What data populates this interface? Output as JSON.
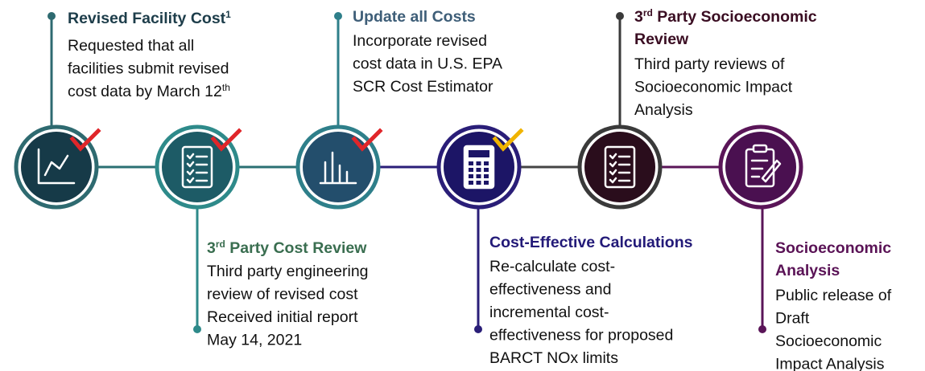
{
  "steps": [
    {
      "title": [
        [
          {
            "text": "Revised Facility Cost"
          },
          {
            "sup": "1"
          }
        ]
      ],
      "lines": [
        [
          {
            "text": "Requested that all"
          }
        ],
        [
          {
            "text": "facilities submit revised"
          }
        ],
        [
          {
            "text": "cost data by March 12"
          },
          {
            "sup": "th"
          }
        ]
      ]
    },
    {
      "title": [
        [
          {
            "text": "3"
          },
          {
            "sup": "rd"
          },
          {
            "text": " Party Cost Review"
          }
        ]
      ],
      "lines": [
        [
          {
            "text": "Third party engineering"
          }
        ],
        [
          {
            "text": "review of revised cost"
          }
        ],
        [
          {
            "text": "Received initial report"
          }
        ],
        [
          {
            "text": "May 14, 2021"
          }
        ]
      ]
    },
    {
      "title": [
        [
          {
            "text": "Update all Costs"
          }
        ]
      ],
      "lines": [
        [
          {
            "text": "Incorporate revised"
          }
        ],
        [
          {
            "text": "cost data in U.S. EPA"
          }
        ],
        [
          {
            "text": "SCR Cost Estimator"
          }
        ]
      ]
    },
    {
      "title": [
        [
          {
            "text": "Cost-Effective Calculations"
          }
        ]
      ],
      "lines": [
        [
          {
            "text": "Re-calculate cost-"
          }
        ],
        [
          {
            "text": "effectiveness and"
          }
        ],
        [
          {
            "text": "incremental cost-"
          }
        ],
        [
          {
            "text": "effectiveness for proposed"
          }
        ],
        [
          {
            "text": "BARCT NOx limits"
          }
        ]
      ]
    },
    {
      "title": [
        [
          {
            "text": "3"
          },
          {
            "sup": "rd"
          },
          {
            "text": " Party Socioeconomic"
          }
        ],
        [
          {
            "text": "Review"
          }
        ]
      ],
      "lines": [
        [
          {
            "text": "Third party reviews of"
          }
        ],
        [
          {
            "text": "Socioeconomic Impact"
          }
        ],
        [
          {
            "text": "Analysis"
          }
        ]
      ]
    },
    {
      "title": [
        [
          {
            "text": "Socioeconomic"
          }
        ],
        [
          {
            "text": "Analysis"
          }
        ]
      ],
      "lines": [
        [
          {
            "text": "Public release of"
          }
        ],
        [
          {
            "text": "Draft"
          }
        ],
        [
          {
            "text": "Socioeconomic"
          }
        ],
        [
          {
            "text": "Impact Analysis"
          }
        ]
      ]
    }
  ]
}
